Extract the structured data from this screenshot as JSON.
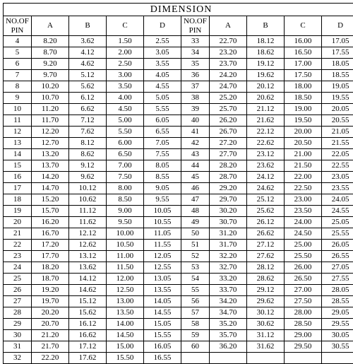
{
  "title": "DIMENSION",
  "columns": [
    "NO.OF\nPIN",
    "A",
    "B",
    "C",
    "D",
    "NO.OF\nPIN",
    "A",
    "B",
    "C",
    "D"
  ],
  "col_widths_class": [
    "pin-col",
    "dim-col",
    "dim-col",
    "dim-col",
    "dim-col",
    "pin-col",
    "dim-col",
    "dim-col",
    "dim-col",
    "dim-col"
  ],
  "title_fontsize": 14,
  "header_fontsize": 11,
  "cell_fontsize": 11,
  "border_color": "#000000",
  "background_color": "#ffffff",
  "rows": [
    [
      "4",
      "8.20",
      "3.62",
      "1.50",
      "2.55",
      "33",
      "22.70",
      "18.12",
      "16.00",
      "17.05"
    ],
    [
      "5",
      "8.70",
      "4.12",
      "2.00",
      "3.05",
      "34",
      "23.20",
      "18.62",
      "16.50",
      "17.55"
    ],
    [
      "6",
      "9.20",
      "4.62",
      "2.50",
      "3.55",
      "35",
      "23.70",
      "19.12",
      "17.00",
      "18.05"
    ],
    [
      "7",
      "9.70",
      "5.12",
      "3.00",
      "4.05",
      "36",
      "24.20",
      "19.62",
      "17.50",
      "18.55"
    ],
    [
      "8",
      "10.20",
      "5.62",
      "3.50",
      "4.55",
      "37",
      "24.70",
      "20.12",
      "18.00",
      "19.05"
    ],
    [
      "9",
      "10.70",
      "6.12",
      "4.00",
      "5.05",
      "38",
      "25.20",
      "20.62",
      "18.50",
      "19.55"
    ],
    [
      "10",
      "11.20",
      "6.62",
      "4.50",
      "5.55",
      "39",
      "25.70",
      "21.12",
      "19.00",
      "20.05"
    ],
    [
      "11",
      "11.70",
      "7.12",
      "5.00",
      "6.05",
      "40",
      "26.20",
      "21.62",
      "19.50",
      "20.55"
    ],
    [
      "12",
      "12.20",
      "7.62",
      "5.50",
      "6.55",
      "41",
      "26.70",
      "22.12",
      "20.00",
      "21.05"
    ],
    [
      "13",
      "12.70",
      "8.12",
      "6.00",
      "7.05",
      "42",
      "27.20",
      "22.62",
      "20.50",
      "21.55"
    ],
    [
      "14",
      "13.20",
      "8.62",
      "6.50",
      "7.55",
      "43",
      "27.70",
      "23.12",
      "21.00",
      "22.05"
    ],
    [
      "15",
      "13.70",
      "9.12",
      "7.00",
      "8.05",
      "44",
      "28.20",
      "23.62",
      "21.50",
      "22.55"
    ],
    [
      "16",
      "14.20",
      "9.62",
      "7.50",
      "8.55",
      "45",
      "28.70",
      "24.12",
      "22.00",
      "23.05"
    ],
    [
      "17",
      "14.70",
      "10.12",
      "8.00",
      "9.05",
      "46",
      "29.20",
      "24.62",
      "22.50",
      "23.55"
    ],
    [
      "18",
      "15.20",
      "10.62",
      "8.50",
      "9.55",
      "47",
      "29.70",
      "25.12",
      "23.00",
      "24.05"
    ],
    [
      "19",
      "15.70",
      "11.12",
      "9.00",
      "10.05",
      "48",
      "30.20",
      "25.62",
      "23.50",
      "24.55"
    ],
    [
      "20",
      "16.20",
      "11.62",
      "9.50",
      "10.55",
      "49",
      "30.70",
      "26.12",
      "24.00",
      "25.05"
    ],
    [
      "21",
      "16.70",
      "12.12",
      "10.00",
      "11.05",
      "50",
      "31.20",
      "26.62",
      "24.50",
      "25.55"
    ],
    [
      "22",
      "17.20",
      "12.62",
      "10.50",
      "11.55",
      "51",
      "31.70",
      "27.12",
      "25.00",
      "26.05"
    ],
    [
      "23",
      "17.70",
      "13.12",
      "11.00",
      "12.05",
      "52",
      "32.20",
      "27.62",
      "25.50",
      "26.55"
    ],
    [
      "24",
      "18.20",
      "13.62",
      "11.50",
      "12.55",
      "53",
      "32.70",
      "28.12",
      "26.00",
      "27.05"
    ],
    [
      "25",
      "18.70",
      "14.12",
      "12.00",
      "13.05",
      "54",
      "33.20",
      "28.62",
      "26.50",
      "27.55"
    ],
    [
      "26",
      "19.20",
      "14.62",
      "12.50",
      "13.55",
      "55",
      "33.70",
      "29.12",
      "27.00",
      "28.05"
    ],
    [
      "27",
      "19.70",
      "15.12",
      "13.00",
      "14.05",
      "56",
      "34.20",
      "29.62",
      "27.50",
      "28.55"
    ],
    [
      "28",
      "20.20",
      "15.62",
      "13.50",
      "14.55",
      "57",
      "34.70",
      "30.12",
      "28.00",
      "29.05"
    ],
    [
      "29",
      "20.70",
      "16.12",
      "14.00",
      "15.05",
      "58",
      "35.20",
      "30.62",
      "28.50",
      "29.55"
    ],
    [
      "30",
      "21.20",
      "16.62",
      "14.50",
      "15.55",
      "59",
      "35.70",
      "31.12",
      "29.00",
      "30.05"
    ],
    [
      "31",
      "21.70",
      "17.12",
      "15.00",
      "16.05",
      "60",
      "36.20",
      "31.62",
      "29.50",
      "30.55"
    ],
    [
      "32",
      "22.20",
      "17.62",
      "15.50",
      "16.55",
      "",
      "",
      "",
      "",
      ""
    ]
  ]
}
